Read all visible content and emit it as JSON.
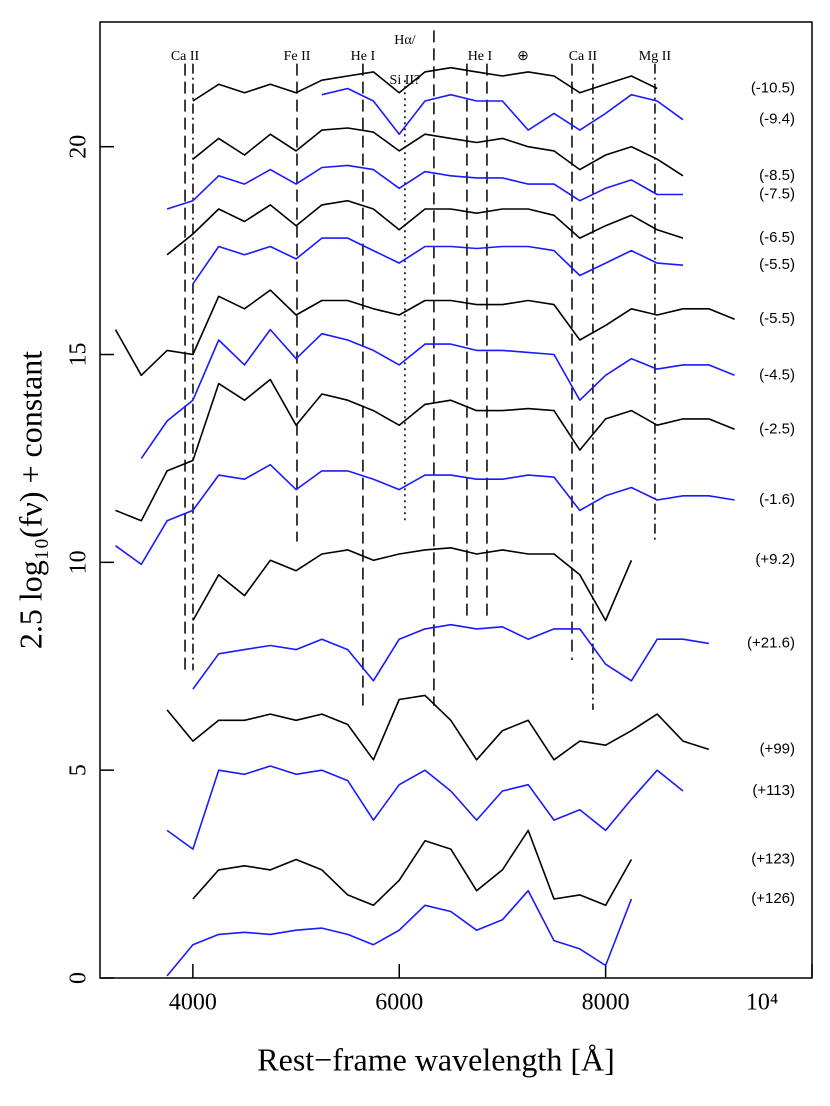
{
  "chart_data": {
    "type": "line",
    "xlabel": "Rest−frame wavelength [Å]",
    "ylabel": "2.5 log₁₀(fν) + constant",
    "xlim": [
      3100,
      10000
    ],
    "ylim": [
      0,
      23
    ],
    "xticks": [
      4000,
      6000,
      8000,
      {
        "value": 10000,
        "label": "10⁴"
      }
    ],
    "yticks": [
      0,
      5,
      10,
      15,
      20
    ],
    "x": [
      3250,
      3500,
      3750,
      4000,
      4250,
      4500,
      4750,
      5000,
      5250,
      5500,
      5750,
      6000,
      6250,
      6500,
      6750,
      7000,
      7250,
      7500,
      7750,
      8000,
      8250,
      8500,
      8750,
      9000,
      9250,
      9500,
      9750
    ],
    "series": [
      {
        "name": "(-10.5)",
        "color": "#000000",
        "values": [
          null,
          null,
          null,
          21.1,
          21.5,
          21.3,
          21.5,
          21.3,
          21.6,
          21.7,
          21.8,
          21.3,
          21.8,
          21.9,
          21.8,
          21.7,
          21.8,
          21.7,
          21.3,
          21.5,
          21.7,
          21.4,
          null,
          null,
          null,
          null,
          null
        ]
      },
      {
        "name": "(-9.4)",
        "color": "#1a1aff",
        "values": [
          null,
          null,
          null,
          null,
          null,
          null,
          null,
          null,
          21.25,
          21.4,
          21.1,
          20.3,
          21.1,
          21.25,
          21.1,
          21.1,
          20.4,
          20.8,
          20.4,
          20.8,
          21.25,
          21.1,
          20.65,
          null,
          null,
          null,
          null
        ]
      },
      {
        "name": "(-8.5)",
        "color": "#000000",
        "values": [
          null,
          null,
          null,
          19.7,
          20.2,
          19.8,
          20.3,
          19.9,
          20.4,
          20.45,
          20.35,
          19.9,
          20.3,
          20.2,
          20.1,
          20.2,
          20.0,
          19.9,
          19.45,
          19.8,
          20.0,
          19.7,
          19.3,
          null,
          null,
          null,
          null
        ]
      },
      {
        "name": "(-7.5)",
        "color": "#1a1aff",
        "values": [
          null,
          null,
          18.5,
          18.7,
          19.3,
          19.1,
          19.45,
          19.1,
          19.5,
          19.55,
          19.45,
          19.0,
          19.4,
          19.3,
          19.25,
          19.25,
          19.1,
          19.1,
          18.7,
          19.0,
          19.2,
          18.85,
          18.85,
          null,
          null,
          null,
          null
        ]
      },
      {
        "name": "(-6.5)",
        "color": "#000000",
        "values": [
          null,
          null,
          17.4,
          17.9,
          18.5,
          18.2,
          18.6,
          18.1,
          18.6,
          18.7,
          18.5,
          18.0,
          18.5,
          18.5,
          18.4,
          18.5,
          18.5,
          18.35,
          17.8,
          18.1,
          18.35,
          18.0,
          17.8,
          null,
          null,
          null,
          null
        ]
      },
      {
        "name": "(-5.5)",
        "color": "#1a1aff",
        "values": [
          null,
          null,
          null,
          16.7,
          17.6,
          17.4,
          17.6,
          17.3,
          17.8,
          17.8,
          17.5,
          17.2,
          17.6,
          17.6,
          17.55,
          17.6,
          17.6,
          17.5,
          16.9,
          17.2,
          17.5,
          17.2,
          17.15,
          null,
          null,
          null,
          null
        ]
      },
      {
        "name": "(-5.5)",
        "color": "#000000",
        "values": [
          15.6,
          14.5,
          15.1,
          15.0,
          16.4,
          16.1,
          16.55,
          15.95,
          16.3,
          16.3,
          16.1,
          15.95,
          16.3,
          16.3,
          16.2,
          16.2,
          16.3,
          16.2,
          15.35,
          15.7,
          16.1,
          15.95,
          16.1,
          16.1,
          15.85,
          null,
          null
        ]
      },
      {
        "name": "(-4.5)",
        "color": "#1a1aff",
        "values": [
          null,
          12.5,
          13.4,
          13.9,
          15.35,
          14.75,
          15.6,
          14.9,
          15.5,
          15.35,
          15.1,
          14.75,
          15.25,
          15.25,
          15.1,
          15.1,
          15.05,
          15.0,
          13.9,
          14.5,
          14.9,
          14.65,
          14.75,
          14.75,
          14.5,
          null,
          null
        ]
      },
      {
        "name": "(-2.5)",
        "color": "#000000",
        "values": [
          11.25,
          11.0,
          12.2,
          12.45,
          14.3,
          13.9,
          14.4,
          13.3,
          14.05,
          13.9,
          13.65,
          13.3,
          13.8,
          13.9,
          13.65,
          13.65,
          13.7,
          13.65,
          12.7,
          13.45,
          13.65,
          13.3,
          13.45,
          13.45,
          13.2,
          null,
          null
        ]
      },
      {
        "name": "(-1.6)",
        "color": "#1a1aff",
        "values": [
          10.4,
          9.95,
          11.0,
          11.25,
          12.1,
          12.0,
          12.35,
          11.75,
          12.2,
          12.2,
          12.0,
          11.75,
          12.1,
          12.1,
          12.0,
          12.0,
          12.1,
          12.05,
          11.25,
          11.6,
          11.8,
          11.5,
          11.6,
          11.6,
          11.5,
          null,
          null
        ]
      },
      {
        "name": "(+9.2)",
        "color": "#000000",
        "values": [
          null,
          null,
          null,
          8.6,
          9.7,
          9.2,
          10.05,
          9.8,
          10.2,
          10.3,
          10.05,
          10.2,
          10.3,
          10.35,
          10.2,
          10.3,
          10.2,
          10.2,
          9.7,
          8.6,
          10.05,
          null,
          null,
          null,
          null,
          null,
          null
        ]
      },
      {
        "name": "(+21.6)",
        "color": "#1a1aff",
        "values": [
          null,
          null,
          null,
          6.95,
          7.8,
          7.9,
          8.0,
          7.9,
          8.15,
          7.9,
          7.15,
          8.15,
          8.4,
          8.5,
          8.4,
          8.45,
          8.15,
          8.4,
          8.4,
          7.55,
          7.15,
          8.15,
          8.15,
          8.05,
          null,
          null,
          null
        ]
      },
      {
        "name": "(+99)",
        "color": "#000000",
        "values": [
          null,
          null,
          6.45,
          5.7,
          6.2,
          6.2,
          6.35,
          6.2,
          6.35,
          6.1,
          5.25,
          6.7,
          6.8,
          6.2,
          5.25,
          5.95,
          6.2,
          5.25,
          5.7,
          5.6,
          5.95,
          6.35,
          5.7,
          5.5,
          null,
          null,
          null
        ]
      },
      {
        "name": "(+113)",
        "color": "#1a1aff",
        "values": [
          null,
          null,
          3.55,
          3.1,
          5.0,
          4.9,
          5.1,
          4.9,
          5.0,
          4.75,
          3.8,
          4.65,
          5.0,
          4.5,
          3.8,
          4.5,
          4.65,
          3.8,
          4.05,
          3.55,
          4.3,
          5.0,
          4.5,
          null,
          null,
          null,
          null
        ]
      },
      {
        "name": "(+123)",
        "color": "#000000",
        "values": [
          null,
          null,
          null,
          1.9,
          2.6,
          2.7,
          2.6,
          2.85,
          2.6,
          2.0,
          1.75,
          2.35,
          3.3,
          3.1,
          2.1,
          2.6,
          3.55,
          1.9,
          2.0,
          1.75,
          2.85,
          null,
          null,
          null,
          null,
          null,
          null
        ]
      },
      {
        "name": "(+126)",
        "color": "#1a1aff",
        "values": [
          null,
          null,
          0.05,
          0.8,
          1.05,
          1.1,
          1.05,
          1.15,
          1.2,
          1.05,
          0.8,
          1.15,
          1.75,
          1.6,
          1.15,
          1.4,
          2.1,
          0.9,
          0.7,
          0.3,
          1.9,
          null,
          null,
          null,
          null,
          null,
          null
        ]
      }
    ],
    "lines": [
      {
        "x": 3924,
        "y": [
          7.4,
          22.0
        ],
        "style": "dashed"
      },
      {
        "x": 4001,
        "y": [
          7.4,
          22.0
        ],
        "style": "dashdot"
      },
      {
        "x": 5009,
        "y": [
          10.5,
          22.0
        ],
        "style": "dashed"
      },
      {
        "x": 5648,
        "y": [
          6.55,
          22.0
        ],
        "style": "dashed"
      },
      {
        "x": 6055,
        "y": [
          11.0,
          21.6
        ],
        "style": "dotted"
      },
      {
        "x": 6336,
        "y": [
          6.55,
          22.8
        ],
        "style": "dashed"
      },
      {
        "x": 6656,
        "y": [
          8.6,
          22.0
        ],
        "style": "dashed"
      },
      {
        "x": 6850,
        "y": [
          8.6,
          22.0
        ],
        "style": "dashed"
      },
      {
        "x": 7674,
        "y": [
          7.65,
          22.0
        ],
        "style": "dashed"
      },
      {
        "x": 7877,
        "y": [
          6.45,
          22.0
        ],
        "style": "dashdot"
      },
      {
        "x": 8478,
        "y": [
          10.5,
          22.0
        ],
        "style": "dashdot"
      }
    ],
    "line_labels": [
      {
        "text": "Ca II",
        "x": 3924
      },
      {
        "text": "Fe II",
        "x": 5009
      },
      {
        "text": "He I",
        "x": 5648
      },
      {
        "text": "Hα/",
        "x": 6055
      },
      {
        "text": "Si II?",
        "x": 6055
      },
      {
        "text": "He I",
        "x": 6782
      },
      {
        "text": "⊕",
        "x": 7199
      },
      {
        "text": "Ca II",
        "x": 7780
      },
      {
        "text": "Mg II",
        "x": 8478
      }
    ]
  }
}
